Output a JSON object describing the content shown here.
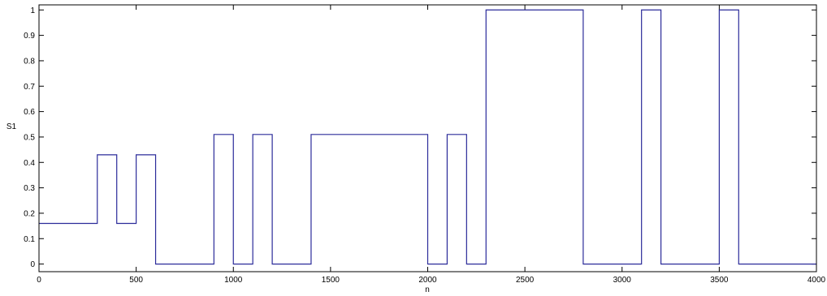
{
  "chart_data": {
    "type": "line",
    "step": true,
    "xlabel": "n",
    "ylabel": "S1",
    "xlim": [
      0,
      4000
    ],
    "ylim": [
      -0.03,
      1.02
    ],
    "xticks": [
      0,
      500,
      1000,
      1500,
      2000,
      2500,
      3000,
      3500,
      4000
    ],
    "yticks": [
      0,
      0.1,
      0.2,
      0.3,
      0.4,
      0.5,
      0.6,
      0.7,
      0.8,
      0.9,
      1
    ],
    "xtick_labels": [
      "0",
      "500",
      "1000",
      "1500",
      "2000",
      "2500",
      "3000",
      "3500",
      "4000"
    ],
    "ytick_labels": [
      "0",
      "0.1",
      "0.2",
      "0.3",
      "0.4",
      "0.5",
      "0.6",
      "0.7",
      "0.8",
      "0.9",
      "1"
    ],
    "grid": false,
    "series": [
      {
        "color": "#2b2b9a",
        "x": [
          0,
          300,
          300,
          400,
          400,
          500,
          500,
          600,
          600,
          900,
          900,
          1000,
          1000,
          1100,
          1100,
          1200,
          1200,
          1400,
          1400,
          2000,
          2000,
          2100,
          2100,
          2200,
          2200,
          2300,
          2300,
          2800,
          2800,
          3100,
          3100,
          3200,
          3200,
          3500,
          3500,
          3600,
          3600,
          4000
        ],
        "y": [
          0.16,
          0.16,
          0.43,
          0.43,
          0.16,
          0.16,
          0.43,
          0.43,
          0,
          0,
          0.51,
          0.51,
          0,
          0,
          0.51,
          0.51,
          0,
          0,
          0.51,
          0.51,
          0,
          0,
          0.51,
          0.51,
          0,
          0,
          1,
          1,
          0,
          0,
          1,
          1,
          0,
          0,
          1,
          1,
          0,
          0
        ]
      }
    ]
  }
}
